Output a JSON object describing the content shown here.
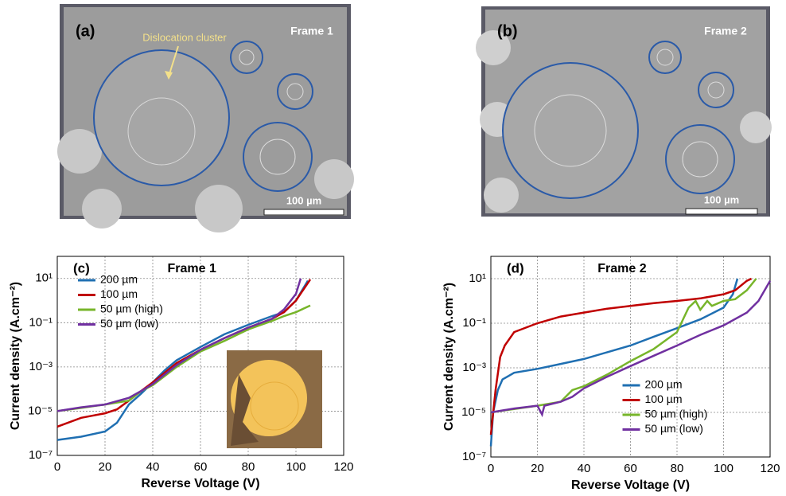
{
  "micrographs": [
    {
      "label": "(a)",
      "title": "Frame 1",
      "annotation": "Dislocation cluster",
      "scale_bar": "100 µm"
    },
    {
      "label": "(b)",
      "title": "Frame 2",
      "scale_bar": "100 µm"
    }
  ],
  "chart_data": [
    {
      "type": "line",
      "panel_label": "(c)",
      "title": "Frame 1",
      "xlabel": "Reverse Voltage (V)",
      "ylabel": "Current density (A.cm⁻²)",
      "xlim": [
        0,
        120
      ],
      "xticks": [
        0,
        20,
        40,
        60,
        80,
        100,
        120
      ],
      "ylim": [
        1e-07,
        100
      ],
      "log_y": true,
      "grid": true,
      "legend": "upper left",
      "yticks": [
        {
          "value": 1e-07,
          "label": "10⁻⁷"
        },
        {
          "value": 1e-05,
          "label": "10⁻⁵"
        },
        {
          "value": 0.001,
          "label": "10⁻³"
        },
        {
          "value": 0.1,
          "label": "10⁻¹"
        },
        {
          "value": 10,
          "label": "10¹"
        }
      ],
      "series": [
        {
          "name": "200 µm",
          "color": "#1f6fb2",
          "x": [
            0,
            10,
            20,
            25,
            30,
            35,
            40,
            45,
            50,
            60,
            70,
            80,
            90,
            95,
            100,
            105
          ],
          "values": [
            5e-07,
            7e-07,
            1.2e-06,
            3e-06,
            2e-05,
            6e-05,
            0.0002,
            0.0007,
            0.002,
            0.008,
            0.03,
            0.08,
            0.2,
            0.3,
            1,
            8
          ]
        },
        {
          "name": "100 µm",
          "color": "#c00000",
          "x": [
            0,
            10,
            20,
            25,
            30,
            35,
            40,
            50,
            60,
            70,
            80,
            90,
            95,
            100,
            103,
            106
          ],
          "values": [
            2e-06,
            5e-06,
            8e-06,
            1.2e-05,
            3e-05,
            8e-05,
            0.0002,
            0.0015,
            0.006,
            0.02,
            0.06,
            0.15,
            0.3,
            1,
            3,
            9
          ]
        },
        {
          "name": "50 µm (high)",
          "color": "#77b52a",
          "x": [
            0,
            10,
            20,
            30,
            35,
            40,
            50,
            60,
            70,
            80,
            90,
            95,
            100,
            106
          ],
          "values": [
            1e-05,
            1.4e-05,
            2e-05,
            3e-05,
            8e-05,
            0.00015,
            0.001,
            0.005,
            0.015,
            0.05,
            0.12,
            0.2,
            0.3,
            0.6
          ]
        },
        {
          "name": "50 µm (low)",
          "color": "#7030a0",
          "x": [
            0,
            10,
            20,
            30,
            35,
            40,
            50,
            60,
            70,
            80,
            90,
            95,
            100,
            102
          ],
          "values": [
            1e-05,
            1.5e-05,
            2e-05,
            4e-05,
            8e-05,
            0.00017,
            0.0012,
            0.006,
            0.02,
            0.06,
            0.15,
            0.4,
            2,
            10
          ]
        }
      ]
    },
    {
      "type": "line",
      "panel_label": "(d)",
      "title": "Frame 2",
      "xlabel": "Reverse Voltage (V)",
      "ylabel": "Current density (A.cm⁻²)",
      "xlim": [
        0,
        120
      ],
      "xticks": [
        0,
        20,
        40,
        60,
        80,
        100,
        120
      ],
      "ylim": [
        1e-07,
        100
      ],
      "log_y": true,
      "grid": true,
      "legend": "lower center",
      "yticks": [
        {
          "value": 1e-07,
          "label": "10⁻⁷"
        },
        {
          "value": 1e-05,
          "label": "10⁻⁵"
        },
        {
          "value": 0.001,
          "label": "10⁻³"
        },
        {
          "value": 0.1,
          "label": "10⁻¹"
        },
        {
          "value": 10,
          "label": "10¹"
        }
      ],
      "series": [
        {
          "name": "200 µm",
          "color": "#1f6fb2",
          "x": [
            0,
            1,
            3,
            5,
            10,
            20,
            30,
            40,
            50,
            60,
            70,
            80,
            90,
            100,
            104,
            106
          ],
          "values": [
            3e-07,
            1e-05,
            0.0001,
            0.0003,
            0.0006,
            0.0009,
            0.0015,
            0.0025,
            0.005,
            0.01,
            0.025,
            0.06,
            0.15,
            0.5,
            2,
            10
          ]
        },
        {
          "name": "100 µm",
          "color": "#c00000",
          "x": [
            0,
            2,
            4,
            6,
            10,
            20,
            30,
            40,
            50,
            60,
            70,
            80,
            90,
            100,
            105,
            110,
            112
          ],
          "values": [
            1e-06,
            0.0001,
            0.003,
            0.01,
            0.04,
            0.1,
            0.2,
            0.3,
            0.45,
            0.6,
            0.8,
            1,
            1.3,
            2,
            3,
            8,
            10
          ]
        },
        {
          "name": "50 µm (high)",
          "color": "#77b52a",
          "x": [
            0,
            20,
            30,
            35,
            40,
            50,
            60,
            70,
            80,
            85,
            88,
            90,
            93,
            95,
            100,
            105,
            110,
            114
          ],
          "values": [
            1e-05,
            2e-05,
            3e-05,
            0.0001,
            0.00015,
            0.0005,
            0.002,
            0.007,
            0.04,
            0.5,
            1,
            0.4,
            1,
            0.6,
            1,
            1.2,
            3,
            10
          ]
        },
        {
          "name": "50 µm (low)",
          "color": "#7030a0",
          "x": [
            0,
            10,
            20,
            22,
            23,
            30,
            35,
            40,
            50,
            60,
            70,
            80,
            90,
            100,
            110,
            115,
            120
          ],
          "values": [
            1e-05,
            1.5e-05,
            2e-05,
            8e-06,
            2e-05,
            3e-05,
            5e-05,
            0.00012,
            0.0004,
            0.0012,
            0.0035,
            0.01,
            0.03,
            0.08,
            0.3,
            1,
            8
          ]
        }
      ]
    }
  ]
}
